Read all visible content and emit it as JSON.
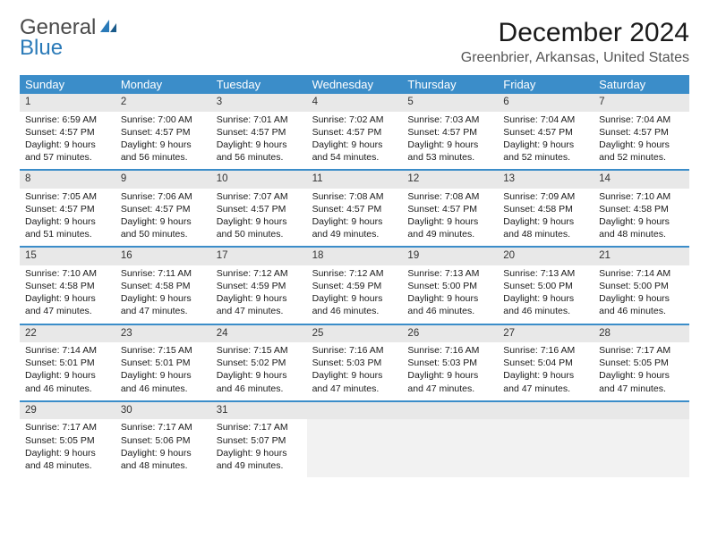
{
  "logo": {
    "line1": "General",
    "line2": "Blue"
  },
  "title": "December 2024",
  "location": "Greenbrier, Arkansas, United States",
  "dayNames": [
    "Sunday",
    "Monday",
    "Tuesday",
    "Wednesday",
    "Thursday",
    "Friday",
    "Saturday"
  ],
  "colors": {
    "header_bg": "#3b8dc9",
    "week_border": "#3b8dc9",
    "date_row_bg": "#e8e8e8",
    "empty_cell_bg": "#f2f2f2",
    "logo_blue": "#2a7ab8"
  },
  "typography": {
    "title_fontsize": 30,
    "location_fontsize": 16,
    "dayheader_fontsize": 13,
    "cell_fontsize": 10.5,
    "date_fontsize": 11.5
  },
  "weeks": [
    [
      {
        "date": "1",
        "sunrise": "Sunrise: 6:59 AM",
        "sunset": "Sunset: 4:57 PM",
        "dl1": "Daylight: 9 hours",
        "dl2": "and 57 minutes."
      },
      {
        "date": "2",
        "sunrise": "Sunrise: 7:00 AM",
        "sunset": "Sunset: 4:57 PM",
        "dl1": "Daylight: 9 hours",
        "dl2": "and 56 minutes."
      },
      {
        "date": "3",
        "sunrise": "Sunrise: 7:01 AM",
        "sunset": "Sunset: 4:57 PM",
        "dl1": "Daylight: 9 hours",
        "dl2": "and 56 minutes."
      },
      {
        "date": "4",
        "sunrise": "Sunrise: 7:02 AM",
        "sunset": "Sunset: 4:57 PM",
        "dl1": "Daylight: 9 hours",
        "dl2": "and 54 minutes."
      },
      {
        "date": "5",
        "sunrise": "Sunrise: 7:03 AM",
        "sunset": "Sunset: 4:57 PM",
        "dl1": "Daylight: 9 hours",
        "dl2": "and 53 minutes."
      },
      {
        "date": "6",
        "sunrise": "Sunrise: 7:04 AM",
        "sunset": "Sunset: 4:57 PM",
        "dl1": "Daylight: 9 hours",
        "dl2": "and 52 minutes."
      },
      {
        "date": "7",
        "sunrise": "Sunrise: 7:04 AM",
        "sunset": "Sunset: 4:57 PM",
        "dl1": "Daylight: 9 hours",
        "dl2": "and 52 minutes."
      }
    ],
    [
      {
        "date": "8",
        "sunrise": "Sunrise: 7:05 AM",
        "sunset": "Sunset: 4:57 PM",
        "dl1": "Daylight: 9 hours",
        "dl2": "and 51 minutes."
      },
      {
        "date": "9",
        "sunrise": "Sunrise: 7:06 AM",
        "sunset": "Sunset: 4:57 PM",
        "dl1": "Daylight: 9 hours",
        "dl2": "and 50 minutes."
      },
      {
        "date": "10",
        "sunrise": "Sunrise: 7:07 AM",
        "sunset": "Sunset: 4:57 PM",
        "dl1": "Daylight: 9 hours",
        "dl2": "and 50 minutes."
      },
      {
        "date": "11",
        "sunrise": "Sunrise: 7:08 AM",
        "sunset": "Sunset: 4:57 PM",
        "dl1": "Daylight: 9 hours",
        "dl2": "and 49 minutes."
      },
      {
        "date": "12",
        "sunrise": "Sunrise: 7:08 AM",
        "sunset": "Sunset: 4:57 PM",
        "dl1": "Daylight: 9 hours",
        "dl2": "and 49 minutes."
      },
      {
        "date": "13",
        "sunrise": "Sunrise: 7:09 AM",
        "sunset": "Sunset: 4:58 PM",
        "dl1": "Daylight: 9 hours",
        "dl2": "and 48 minutes."
      },
      {
        "date": "14",
        "sunrise": "Sunrise: 7:10 AM",
        "sunset": "Sunset: 4:58 PM",
        "dl1": "Daylight: 9 hours",
        "dl2": "and 48 minutes."
      }
    ],
    [
      {
        "date": "15",
        "sunrise": "Sunrise: 7:10 AM",
        "sunset": "Sunset: 4:58 PM",
        "dl1": "Daylight: 9 hours",
        "dl2": "and 47 minutes."
      },
      {
        "date": "16",
        "sunrise": "Sunrise: 7:11 AM",
        "sunset": "Sunset: 4:58 PM",
        "dl1": "Daylight: 9 hours",
        "dl2": "and 47 minutes."
      },
      {
        "date": "17",
        "sunrise": "Sunrise: 7:12 AM",
        "sunset": "Sunset: 4:59 PM",
        "dl1": "Daylight: 9 hours",
        "dl2": "and 47 minutes."
      },
      {
        "date": "18",
        "sunrise": "Sunrise: 7:12 AM",
        "sunset": "Sunset: 4:59 PM",
        "dl1": "Daylight: 9 hours",
        "dl2": "and 46 minutes."
      },
      {
        "date": "19",
        "sunrise": "Sunrise: 7:13 AM",
        "sunset": "Sunset: 5:00 PM",
        "dl1": "Daylight: 9 hours",
        "dl2": "and 46 minutes."
      },
      {
        "date": "20",
        "sunrise": "Sunrise: 7:13 AM",
        "sunset": "Sunset: 5:00 PM",
        "dl1": "Daylight: 9 hours",
        "dl2": "and 46 minutes."
      },
      {
        "date": "21",
        "sunrise": "Sunrise: 7:14 AM",
        "sunset": "Sunset: 5:00 PM",
        "dl1": "Daylight: 9 hours",
        "dl2": "and 46 minutes."
      }
    ],
    [
      {
        "date": "22",
        "sunrise": "Sunrise: 7:14 AM",
        "sunset": "Sunset: 5:01 PM",
        "dl1": "Daylight: 9 hours",
        "dl2": "and 46 minutes."
      },
      {
        "date": "23",
        "sunrise": "Sunrise: 7:15 AM",
        "sunset": "Sunset: 5:01 PM",
        "dl1": "Daylight: 9 hours",
        "dl2": "and 46 minutes."
      },
      {
        "date": "24",
        "sunrise": "Sunrise: 7:15 AM",
        "sunset": "Sunset: 5:02 PM",
        "dl1": "Daylight: 9 hours",
        "dl2": "and 46 minutes."
      },
      {
        "date": "25",
        "sunrise": "Sunrise: 7:16 AM",
        "sunset": "Sunset: 5:03 PM",
        "dl1": "Daylight: 9 hours",
        "dl2": "and 47 minutes."
      },
      {
        "date": "26",
        "sunrise": "Sunrise: 7:16 AM",
        "sunset": "Sunset: 5:03 PM",
        "dl1": "Daylight: 9 hours",
        "dl2": "and 47 minutes."
      },
      {
        "date": "27",
        "sunrise": "Sunrise: 7:16 AM",
        "sunset": "Sunset: 5:04 PM",
        "dl1": "Daylight: 9 hours",
        "dl2": "and 47 minutes."
      },
      {
        "date": "28",
        "sunrise": "Sunrise: 7:17 AM",
        "sunset": "Sunset: 5:05 PM",
        "dl1": "Daylight: 9 hours",
        "dl2": "and 47 minutes."
      }
    ],
    [
      {
        "date": "29",
        "sunrise": "Sunrise: 7:17 AM",
        "sunset": "Sunset: 5:05 PM",
        "dl1": "Daylight: 9 hours",
        "dl2": "and 48 minutes."
      },
      {
        "date": "30",
        "sunrise": "Sunrise: 7:17 AM",
        "sunset": "Sunset: 5:06 PM",
        "dl1": "Daylight: 9 hours",
        "dl2": "and 48 minutes."
      },
      {
        "date": "31",
        "sunrise": "Sunrise: 7:17 AM",
        "sunset": "Sunset: 5:07 PM",
        "dl1": "Daylight: 9 hours",
        "dl2": "and 49 minutes."
      },
      null,
      null,
      null,
      null
    ]
  ]
}
